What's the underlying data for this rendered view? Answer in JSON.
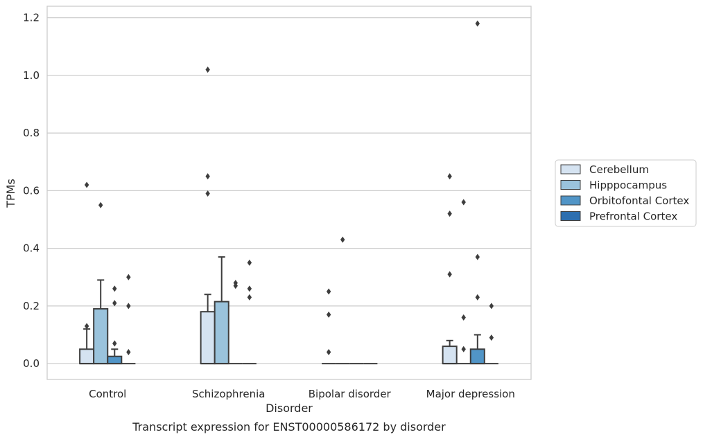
{
  "chart_data": {
    "type": "box",
    "caption": "Transcript expression for ENST00000586172 by disorder",
    "xlabel": "Disorder",
    "ylabel": "TPMs",
    "ylim": [
      -0.055,
      1.24
    ],
    "yticks": [
      "0.0",
      "0.2",
      "0.4",
      "0.6",
      "0.8",
      "1.0",
      "1.2"
    ],
    "categories": [
      "Control",
      "Schizophrenia",
      "Bipolar disorder",
      "Major depression"
    ],
    "grid": "horizontal",
    "legend_position": "right",
    "series": [
      {
        "name": "Cerebellum",
        "color": "#d5e3f1"
      },
      {
        "name": "Hipppocampus",
        "color": "#9ac3dc"
      },
      {
        "name": "Orbitofontal Cortex",
        "color": "#5195c7"
      },
      {
        "name": "Prefrontal Cortex",
        "color": "#2d6fb0"
      }
    ],
    "boxes": [
      [
        {
          "q1": 0,
          "q3": 0.05,
          "median": 0,
          "whisker_low": 0,
          "whisker_high": 0.12,
          "outliers": [
            0.13,
            0.62
          ]
        },
        {
          "q1": 0,
          "q3": 0.19,
          "median": 0,
          "whisker_low": 0,
          "whisker_high": 0.29,
          "outliers": [
            0.55
          ]
        },
        {
          "q1": 0,
          "q3": 0.025,
          "median": 0,
          "whisker_low": 0,
          "whisker_high": 0.05,
          "outliers": [
            0.07,
            0.21,
            0.26
          ]
        },
        {
          "q1": 0,
          "q3": 0,
          "median": 0,
          "whisker_low": 0,
          "whisker_high": 0,
          "outliers": [
            0.04,
            0.2,
            0.3
          ]
        }
      ],
      [
        {
          "q1": 0,
          "q3": 0.18,
          "median": 0,
          "whisker_low": 0,
          "whisker_high": 0.24,
          "outliers": [
            0.59,
            0.65,
            1.02
          ]
        },
        {
          "q1": 0,
          "q3": 0.215,
          "median": 0,
          "whisker_low": 0,
          "whisker_high": 0.37,
          "outliers": []
        },
        {
          "q1": 0,
          "q3": 0,
          "median": 0,
          "whisker_low": 0,
          "whisker_high": 0,
          "outliers": [
            0.27,
            0.28
          ]
        },
        {
          "q1": 0,
          "q3": 0,
          "median": 0,
          "whisker_low": 0,
          "whisker_high": 0,
          "outliers": [
            0.23,
            0.26,
            0.35
          ]
        }
      ],
      [
        {
          "q1": 0,
          "q3": 0,
          "median": 0,
          "whisker_low": 0,
          "whisker_high": 0,
          "outliers": [
            0.04,
            0.17,
            0.25
          ]
        },
        {
          "q1": 0,
          "q3": 0,
          "median": 0,
          "whisker_low": 0,
          "whisker_high": 0,
          "outliers": [
            0.43
          ]
        },
        {
          "q1": 0,
          "q3": 0,
          "median": 0,
          "whisker_low": 0,
          "whisker_high": 0,
          "outliers": []
        },
        {
          "q1": 0,
          "q3": 0,
          "median": 0,
          "whisker_low": 0,
          "whisker_high": 0,
          "outliers": []
        }
      ],
      [
        {
          "q1": 0,
          "q3": 0.06,
          "median": 0,
          "whisker_low": 0,
          "whisker_high": 0.08,
          "outliers": [
            0.31,
            0.52,
            0.65
          ]
        },
        {
          "q1": 0,
          "q3": 0,
          "median": 0,
          "whisker_low": 0,
          "whisker_high": 0,
          "outliers": [
            0.05,
            0.16,
            0.56
          ]
        },
        {
          "q1": 0,
          "q3": 0.05,
          "median": 0,
          "whisker_low": 0,
          "whisker_high": 0.1,
          "outliers": [
            0.23,
            0.37,
            1.18
          ]
        },
        {
          "q1": 0,
          "q3": 0,
          "median": 0,
          "whisker_low": 0,
          "whisker_high": 0,
          "outliers": [
            0.09,
            0.2
          ]
        }
      ]
    ]
  }
}
